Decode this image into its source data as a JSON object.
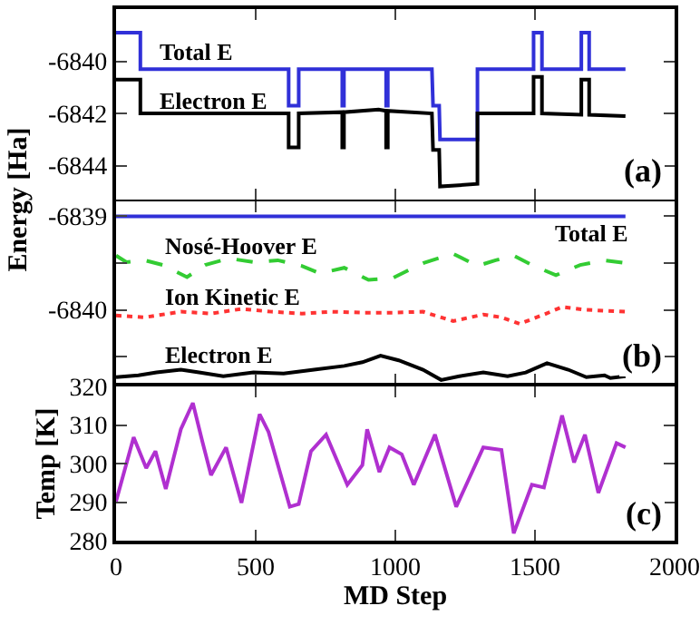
{
  "chart_data": [
    {
      "type": "line",
      "ylabel": "Energy [Ha]",
      "xlim": [
        0,
        2000
      ],
      "xticks": [
        0,
        500,
        1000,
        1500,
        2000
      ],
      "ylim": [
        -6845.3,
        -6838
      ],
      "yticks": [
        -6840,
        -6842,
        -6844
      ],
      "tick_labels": "y",
      "grid": false,
      "legend": false,
      "marker": "none",
      "annotations": [
        "(a)"
      ],
      "series": [
        {
          "name": "Total E",
          "color": "#3030d8",
          "line_style": "solid",
          "x": [
            0,
            87,
            87,
            618,
            618,
            654,
            654,
            810,
            810,
            816,
            816,
            967,
            967,
            973,
            973,
            1131,
            1135,
            1157,
            1160,
            1294,
            1294,
            1495,
            1495,
            1525,
            1525,
            1666,
            1666,
            1694,
            1694,
            1824
          ],
          "values": [
            -6838.9,
            -6838.9,
            -6840.3,
            -6840.3,
            -6841.7,
            -6841.7,
            -6840.3,
            -6840.3,
            -6841.7,
            -6841.7,
            -6840.3,
            -6840.3,
            -6841.7,
            -6841.7,
            -6840.3,
            -6840.3,
            -6841.7,
            -6841.7,
            -6843.0,
            -6843.0,
            -6840.3,
            -6840.3,
            -6838.9,
            -6838.9,
            -6840.3,
            -6840.3,
            -6838.9,
            -6838.9,
            -6840.3,
            -6840.3
          ]
        },
        {
          "name": "Electron E",
          "color": "#000000",
          "line_style": "solid",
          "x": [
            0,
            87,
            87,
            400,
            618,
            618,
            654,
            654,
            810,
            810,
            816,
            816,
            940,
            967,
            967,
            973,
            973,
            1131,
            1135,
            1157,
            1160,
            1294,
            1294,
            1495,
            1495,
            1525,
            1525,
            1666,
            1666,
            1694,
            1694,
            1824
          ],
          "values": [
            -6840.7,
            -6840.7,
            -6842.0,
            -6842.0,
            -6842.0,
            -6843.3,
            -6843.3,
            -6842.0,
            -6841.95,
            -6843.3,
            -6843.3,
            -6841.95,
            -6841.85,
            -6841.9,
            -6843.3,
            -6843.3,
            -6841.9,
            -6842.0,
            -6843.4,
            -6843.4,
            -6844.8,
            -6844.7,
            -6842.0,
            -6842.0,
            -6840.6,
            -6840.6,
            -6842.0,
            -6842.05,
            -6840.7,
            -6840.7,
            -6842.05,
            -6842.1
          ]
        }
      ]
    },
    {
      "type": "line",
      "xlim": [
        0,
        2000
      ],
      "xticks": [
        0,
        500,
        1000,
        1500,
        2000
      ],
      "ylim": [
        -6840.8,
        -6838.84
      ],
      "yticks": [
        -6839,
        {
          "value": -6839.5,
          "label": null
        },
        -6840,
        {
          "value": -6840.5,
          "label": null
        }
      ],
      "tick_labels": "y",
      "grid": false,
      "legend": false,
      "marker": "none",
      "annotations": [
        "(b)"
      ],
      "series": [
        {
          "name": "Total E",
          "color": "#3030d8",
          "line_style": "solid",
          "x": [
            0,
            1824
          ],
          "values": [
            -6839.0,
            -6839.0
          ]
        },
        {
          "name": "Nosé-Hoover E",
          "color": "#33cc33",
          "line_style": "dashed",
          "x": [
            0,
            37,
            102,
            167,
            254,
            319,
            405,
            492,
            579,
            665,
            730,
            817,
            904,
            990,
            1099,
            1207,
            1294,
            1359,
            1424,
            1489,
            1575,
            1662,
            1749,
            1824
          ],
          "values": [
            -6839.42,
            -6839.49,
            -6839.47,
            -6839.52,
            -6839.65,
            -6839.52,
            -6839.45,
            -6839.49,
            -6839.47,
            -6839.53,
            -6839.61,
            -6839.55,
            -6839.68,
            -6839.66,
            -6839.5,
            -6839.4,
            -6839.53,
            -6839.47,
            -6839.42,
            -6839.52,
            -6839.63,
            -6839.52,
            -6839.47,
            -6839.5
          ]
        },
        {
          "name": "Ion Kinetic E",
          "color": "#ff3333",
          "line_style": "dotted",
          "x": [
            0,
            102,
            232,
            340,
            449,
            557,
            665,
            774,
            882,
            990,
            1099,
            1207,
            1315,
            1380,
            1445,
            1532,
            1597,
            1684,
            1824
          ],
          "values": [
            -6840.06,
            -6840.08,
            -6840.02,
            -6840.04,
            -6839.99,
            -6840.02,
            -6840.04,
            -6840.02,
            -6840.03,
            -6840.03,
            -6840.02,
            -6840.12,
            -6840.05,
            -6840.08,
            -6840.15,
            -6840.05,
            -6839.97,
            -6840.0,
            -6840.02
          ]
        },
        {
          "name": "Electron E",
          "color": "#000000",
          "line_style": "solid",
          "x": [
            0,
            80,
            145,
            232,
            297,
            384,
            492,
            600,
            709,
            817,
            882,
            947,
            1012,
            1099,
            1164,
            1229,
            1315,
            1402,
            1467,
            1543,
            1619,
            1684,
            1749,
            1770,
            1824
          ],
          "values": [
            -6840.72,
            -6840.7,
            -6840.67,
            -6840.64,
            -6840.67,
            -6840.71,
            -6840.67,
            -6840.68,
            -6840.64,
            -6840.6,
            -6840.56,
            -6840.49,
            -6840.54,
            -6840.64,
            -6840.75,
            -6840.71,
            -6840.67,
            -6840.71,
            -6840.67,
            -6840.57,
            -6840.64,
            -6840.72,
            -6840.7,
            -6840.73,
            -6840.71
          ]
        }
      ]
    },
    {
      "type": "line",
      "xlabel": "MD Step",
      "xlim": [
        0,
        2000
      ],
      "xticks": [
        0,
        500,
        1000,
        1500,
        2000
      ],
      "ylim": [
        280,
        320
      ],
      "yticks": [
        280,
        290,
        300,
        310,
        320
      ],
      "ylabel": "Temp [K]",
      "grid": false,
      "legend": false,
      "marker": "none",
      "annotations": [
        "(c)"
      ],
      "series": [
        {
          "color": "#b030d0",
          "line_style": "solid",
          "x": [
            0,
            63,
            108,
            141,
            178,
            232,
            275,
            308,
            340,
            394,
            449,
            514,
            546,
            622,
            654,
            698,
            752,
            828,
            882,
            899,
            943,
            979,
            1023,
            1066,
            1142,
            1218,
            1315,
            1380,
            1424,
            1489,
            1532,
            1597,
            1640,
            1679,
            1727,
            1792,
            1824
          ],
          "values": [
            290.2,
            306.8,
            298.8,
            303.2,
            293.4,
            308.9,
            315.7,
            306.0,
            297.0,
            304.2,
            289.8,
            312.8,
            308.2,
            288.8,
            289.5,
            303.2,
            307.5,
            294.5,
            299.6,
            308.9,
            297.8,
            304.2,
            302.4,
            294.5,
            307.5,
            288.8,
            304.2,
            303.5,
            281.9,
            294.5,
            293.8,
            312.5,
            300.3,
            307.5,
            292.4,
            305.3,
            304.2
          ]
        }
      ]
    }
  ]
}
